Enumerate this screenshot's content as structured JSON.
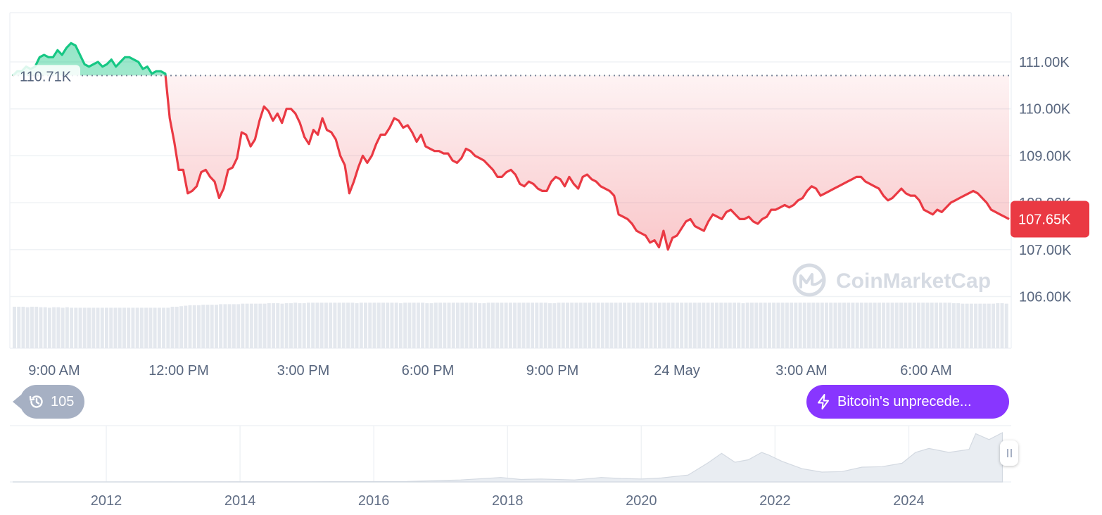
{
  "chart_data": {
    "type": "line",
    "title": "",
    "xlabel": "",
    "ylabel": "",
    "ylim": [
      106000,
      111500
    ],
    "y_ticks": [
      "111.00K",
      "110.00K",
      "109.00K",
      "108.00K",
      "107.00K",
      "106.00K"
    ],
    "y_tick_values": [
      111000,
      110000,
      109000,
      108000,
      107000,
      106000
    ],
    "x_ticks": [
      "9:00 AM",
      "12:00 PM",
      "3:00 PM",
      "6:00 PM",
      "9:00 PM",
      "24 May",
      "3:00 AM",
      "6:00 AM"
    ],
    "x_tick_hours": [
      1,
      4,
      7,
      10,
      13,
      16,
      19,
      22
    ],
    "xlim_hours": [
      0,
      24
    ],
    "open_price": 110710,
    "open_label": "110.71K",
    "current_price": 107650,
    "current_label": "107.65K",
    "colors": {
      "above": "#16c784",
      "below": "#ea3943",
      "grid": "#eff2f5",
      "volume": "#e4e8ee"
    },
    "series": [
      {
        "values": [
          110700,
          110800,
          110800,
          110900,
          110850,
          110900,
          111100,
          111150,
          111100,
          111100,
          111250,
          111150,
          111300,
          111400,
          111350,
          111150,
          110950,
          110900,
          110950,
          111000,
          110900,
          110950,
          111050,
          110900,
          111000,
          111100,
          111100,
          111050,
          111000,
          110850,
          110900,
          110750,
          110800,
          110800,
          110750,
          109800,
          109300,
          108700,
          108700,
          108200,
          108250,
          108350,
          108650,
          108700,
          108550,
          108450,
          108100,
          108300,
          108700,
          108750,
          108950,
          109500,
          109450,
          109200,
          109350,
          109750,
          110050,
          109950,
          109750,
          109900,
          109700,
          110000,
          110000,
          109900,
          109700,
          109400,
          109250,
          109550,
          109450,
          109800,
          109550,
          109500,
          109350,
          109000,
          108800,
          108200,
          108450,
          108750,
          109000,
          108850,
          109000,
          109250,
          109450,
          109450,
          109600,
          109800,
          109750,
          109600,
          109650,
          109500,
          109300,
          109450,
          109200,
          109150,
          109100,
          109100,
          109050,
          109050,
          108900,
          108850,
          108950,
          109150,
          109100,
          109000,
          108950,
          108900,
          108800,
          108700,
          108550,
          108550,
          108650,
          108700,
          108600,
          108400,
          108350,
          108450,
          108400,
          108300,
          108250,
          108250,
          108450,
          108550,
          108500,
          108350,
          108550,
          108400,
          108300,
          108550,
          108600,
          108500,
          108450,
          108350,
          108300,
          108250,
          108150,
          107750,
          107700,
          107650,
          107550,
          107400,
          107350,
          107300,
          107150,
          107200,
          107050,
          107400,
          107000,
          107250,
          107300,
          107450,
          107600,
          107650,
          107500,
          107450,
          107400,
          107600,
          107750,
          107700,
          107650,
          107800,
          107850,
          107750,
          107650,
          107650,
          107700,
          107600,
          107550,
          107650,
          107700,
          107850,
          107850,
          107900,
          107950,
          107900,
          107950,
          108050,
          108100,
          108250,
          108350,
          108300,
          108150,
          108200,
          108250,
          108300,
          108350,
          108400,
          108450,
          108500,
          108550,
          108550,
          108450,
          108400,
          108350,
          108300,
          108150,
          108050,
          108100,
          108200,
          108300,
          108200,
          108150,
          108150,
          108050,
          107850,
          107800,
          107750,
          107850,
          107800,
          107900,
          108000,
          108050,
          108100,
          108150,
          108200,
          108250,
          108200,
          108100,
          108000,
          107850,
          107800,
          107750,
          107700,
          107650
        ]
      }
    ],
    "volume": [
      0.82,
      0.82,
      0.82,
      0.81,
      0.82,
      0.82,
      0.81,
      0.81,
      0.8,
      0.81,
      0.81,
      0.8,
      0.81,
      0.8,
      0.8,
      0.8,
      0.8,
      0.8,
      0.8,
      0.8,
      0.8,
      0.8,
      0.8,
      0.8,
      0.8,
      0.8,
      0.8,
      0.8,
      0.8,
      0.8,
      0.8,
      0.8,
      0.8,
      0.8,
      0.8,
      0.8,
      0.82,
      0.82,
      0.83,
      0.84,
      0.85,
      0.85,
      0.85,
      0.86,
      0.86,
      0.86,
      0.86,
      0.87,
      0.87,
      0.87,
      0.87,
      0.87,
      0.88,
      0.88,
      0.88,
      0.88,
      0.88,
      0.88,
      0.89,
      0.89,
      0.89,
      0.88,
      0.89,
      0.89,
      0.9,
      0.89,
      0.89,
      0.9,
      0.9,
      0.9,
      0.9,
      0.9,
      0.9,
      0.9,
      0.9,
      0.9,
      0.9,
      0.9,
      0.89,
      0.9,
      0.9,
      0.9,
      0.9,
      0.9,
      0.9,
      0.9,
      0.9,
      0.9,
      0.89,
      0.9,
      0.9,
      0.9,
      0.9,
      0.9,
      0.89,
      0.89,
      0.9,
      0.9,
      0.9,
      0.9,
      0.9,
      0.9,
      0.9,
      0.9,
      0.9,
      0.9,
      0.89,
      0.89,
      0.9,
      0.9,
      0.9,
      0.9,
      0.9,
      0.9,
      0.9,
      0.9,
      0.9,
      0.9,
      0.9,
      0.9,
      0.9,
      0.9,
      0.89,
      0.89,
      0.9,
      0.9,
      0.9,
      0.9,
      0.9,
      0.9,
      0.9,
      0.9,
      0.9,
      0.9,
      0.9,
      0.9,
      0.9,
      0.9,
      0.9,
      0.9,
      0.9,
      0.9,
      0.9,
      0.9,
      0.9,
      0.9,
      0.9,
      0.9,
      0.9,
      0.9,
      0.9,
      0.9,
      0.9,
      0.9,
      0.9,
      0.9,
      0.9,
      0.9,
      0.9,
      0.9,
      0.9,
      0.9,
      0.9,
      0.9,
      0.9,
      0.9,
      0.89,
      0.9,
      0.9,
      0.9,
      0.9,
      0.9,
      0.9,
      0.9,
      0.9,
      0.9,
      0.9,
      0.9,
      0.9,
      0.9,
      0.9,
      0.9,
      0.9,
      0.9,
      0.9,
      0.9,
      0.9,
      0.9,
      0.9,
      0.9,
      0.9,
      0.9,
      0.9,
      0.9,
      0.9,
      0.9,
      0.9,
      0.9,
      0.9,
      0.9,
      0.9,
      0.9,
      0.9,
      0.9,
      0.9,
      0.9,
      0.9,
      0.9,
      0.9,
      0.9,
      0.9,
      0.9,
      0.9,
      0.9,
      0.89,
      0.89,
      0.88,
      0.88,
      0.88,
      0.88,
      0.88,
      0.88,
      0.88,
      0.88,
      0.89,
      0.89,
      0.88
    ],
    "navigator": {
      "x_ticks": [
        "2012",
        "2014",
        "2016",
        "2018",
        "2020",
        "2022",
        "2024"
      ],
      "x_tick_years": [
        2012,
        2014,
        2016,
        2018,
        2020,
        2022,
        2024
      ],
      "xlim_years": [
        2010.6,
        2025.5
      ],
      "series_years": [
        2010.6,
        2013,
        2015,
        2016.5,
        2017.3,
        2017.9,
        2018.2,
        2018.5,
        2019,
        2019.4,
        2019.7,
        2020,
        2020.3,
        2020.7,
        2021.0,
        2021.2,
        2021.4,
        2021.6,
        2021.8,
        2021.9,
        2022.1,
        2022.4,
        2022.7,
        2023.0,
        2023.3,
        2023.6,
        2023.9,
        2024.1,
        2024.3,
        2024.6,
        2024.9,
        2025.0,
        2025.2,
        2025.4
      ],
      "series_values": [
        0,
        0.2,
        0.4,
        1,
        4,
        9,
        5,
        6,
        4,
        9,
        7,
        6,
        8,
        14,
        39,
        58,
        40,
        45,
        60,
        55,
        42,
        27,
        20,
        21,
        30,
        31,
        38,
        60,
        68,
        60,
        66,
        98,
        86,
        100
      ]
    }
  },
  "watermark": {
    "text": "CoinMarketCap"
  },
  "history_badge": {
    "count": "105",
    "icon": "history-icon"
  },
  "news_badge": {
    "text": "Bitcoin's unprecede...",
    "icon": "bolt-icon"
  }
}
